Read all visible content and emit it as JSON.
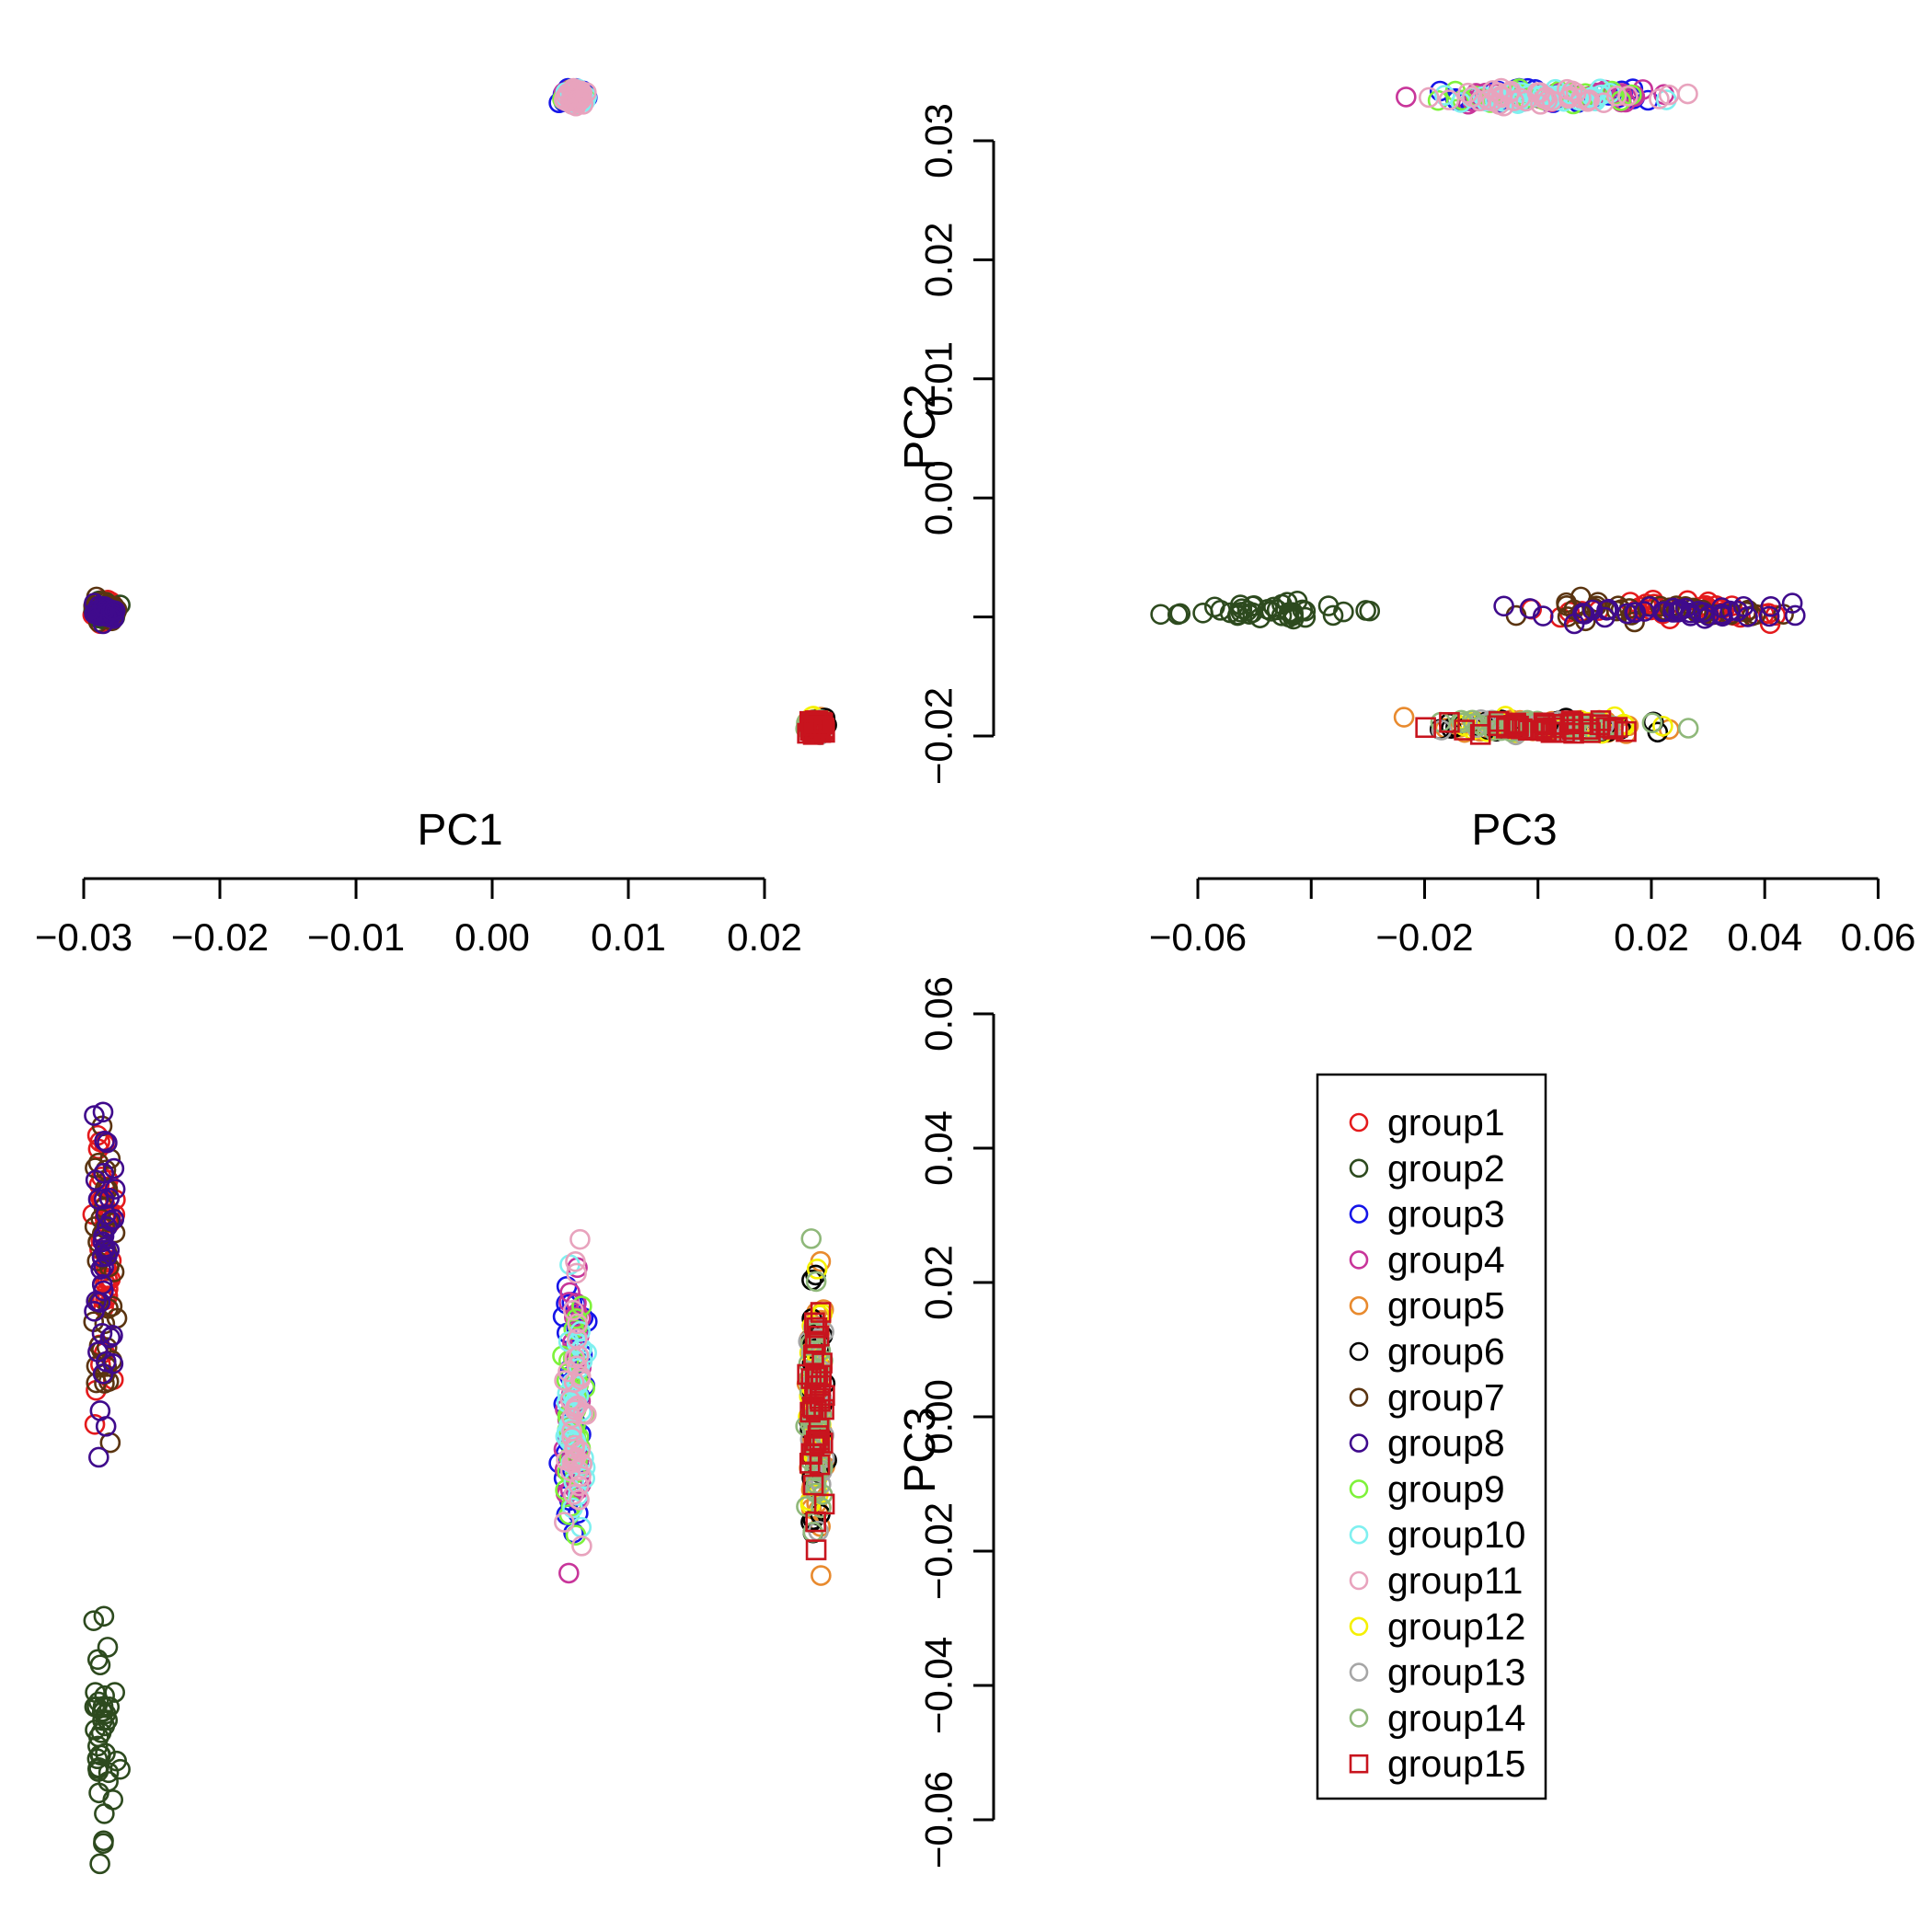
{
  "chart_data": {
    "type": "scatter",
    "title": "",
    "axes": {
      "pc1": {
        "label": "PC1",
        "ticks": [
          -0.03,
          -0.02,
          -0.01,
          0.0,
          0.01,
          0.02
        ],
        "tick_labels": [
          "−0.03",
          "−0.02",
          "−0.01",
          "0.00",
          "0.01",
          "0.02"
        ],
        "range": [
          -0.03,
          0.02
        ]
      },
      "pc2": {
        "label": "PC2",
        "ticks": [
          -0.02,
          -0.01,
          0.0,
          0.01,
          0.02,
          0.03
        ],
        "tick_labels": [
          "−0.02",
          "",
          "0.00",
          "0.01",
          "0.02",
          "0.03"
        ],
        "range": [
          -0.02,
          0.03
        ]
      },
      "pc3": {
        "label": "PC3",
        "ticks": [
          -0.06,
          -0.04,
          -0.02,
          0.0,
          0.02,
          0.04,
          0.06
        ],
        "tick_labels_bottom": [
          "−0.06",
          "",
          "−0.02",
          "",
          "0.02",
          "0.04",
          "0.06"
        ],
        "tick_labels_side": [
          "−0.06",
          "−0.04",
          "−0.02",
          "0.00",
          "0.02",
          "0.04",
          "0.06"
        ],
        "range": [
          -0.06,
          0.06
        ]
      }
    },
    "panels": [
      {
        "name": "PC1 vs PC2",
        "x": "pc1",
        "y": "pc2"
      },
      {
        "name": "PC3 vs PC2",
        "x": "pc3",
        "y": "pc2"
      },
      {
        "name": "PC1 vs PC3",
        "x": "pc1",
        "y": "pc3"
      }
    ],
    "legend": {
      "position": "bottom-right",
      "boxed": true
    },
    "series": [
      {
        "name": "group1",
        "color": "#e41a1c",
        "marker": "circle",
        "cluster": "A"
      },
      {
        "name": "group2",
        "color": "#2d4a1e",
        "marker": "circle",
        "cluster": "B"
      },
      {
        "name": "group3",
        "color": "#1515e8",
        "marker": "circle",
        "cluster": "C"
      },
      {
        "name": "group4",
        "color": "#c8359a",
        "marker": "circle",
        "cluster": "C"
      },
      {
        "name": "group5",
        "color": "#e88a2e",
        "marker": "circle",
        "cluster": "D"
      },
      {
        "name": "group6",
        "color": "#000000",
        "marker": "circle",
        "cluster": "D"
      },
      {
        "name": "group7",
        "color": "#5a3410",
        "marker": "circle",
        "cluster": "A"
      },
      {
        "name": "group8",
        "color": "#3f0a8c",
        "marker": "circle",
        "cluster": "A"
      },
      {
        "name": "group9",
        "color": "#7ef23a",
        "marker": "circle",
        "cluster": "C"
      },
      {
        "name": "group10",
        "color": "#7ff0f0",
        "marker": "circle",
        "cluster": "C"
      },
      {
        "name": "group11",
        "color": "#e8a3bd",
        "marker": "circle",
        "cluster": "C"
      },
      {
        "name": "group12",
        "color": "#f5f000",
        "marker": "circle",
        "cluster": "D"
      },
      {
        "name": "group13",
        "color": "#a6a6a6",
        "marker": "circle",
        "cluster": "D"
      },
      {
        "name": "group14",
        "color": "#8fb87a",
        "marker": "circle",
        "cluster": "D"
      },
      {
        "name": "group15",
        "color": "#c8141e",
        "marker": "square",
        "cluster": "D"
      }
    ],
    "clusters": {
      "A": {
        "pc1": -0.0285,
        "pc2": -0.0095,
        "pc3": 0.024,
        "sd1": 0.0004,
        "sd2": 0.0004,
        "sd3": 0.011
      },
      "B": {
        "pc1": -0.0285,
        "pc2": -0.0095,
        "pc3": -0.045,
        "sd1": 0.0004,
        "sd2": 0.0004,
        "sd3": 0.008
      },
      "C": {
        "pc1": 0.006,
        "pc2": 0.0337,
        "pc3": 0.0,
        "sd1": 0.0004,
        "sd2": 0.0003,
        "sd3": 0.009
      },
      "D": {
        "pc1": 0.0238,
        "pc2": -0.0192,
        "pc3": 0.0,
        "sd1": 0.0003,
        "sd2": 0.0003,
        "sd3": 0.009
      }
    }
  }
}
